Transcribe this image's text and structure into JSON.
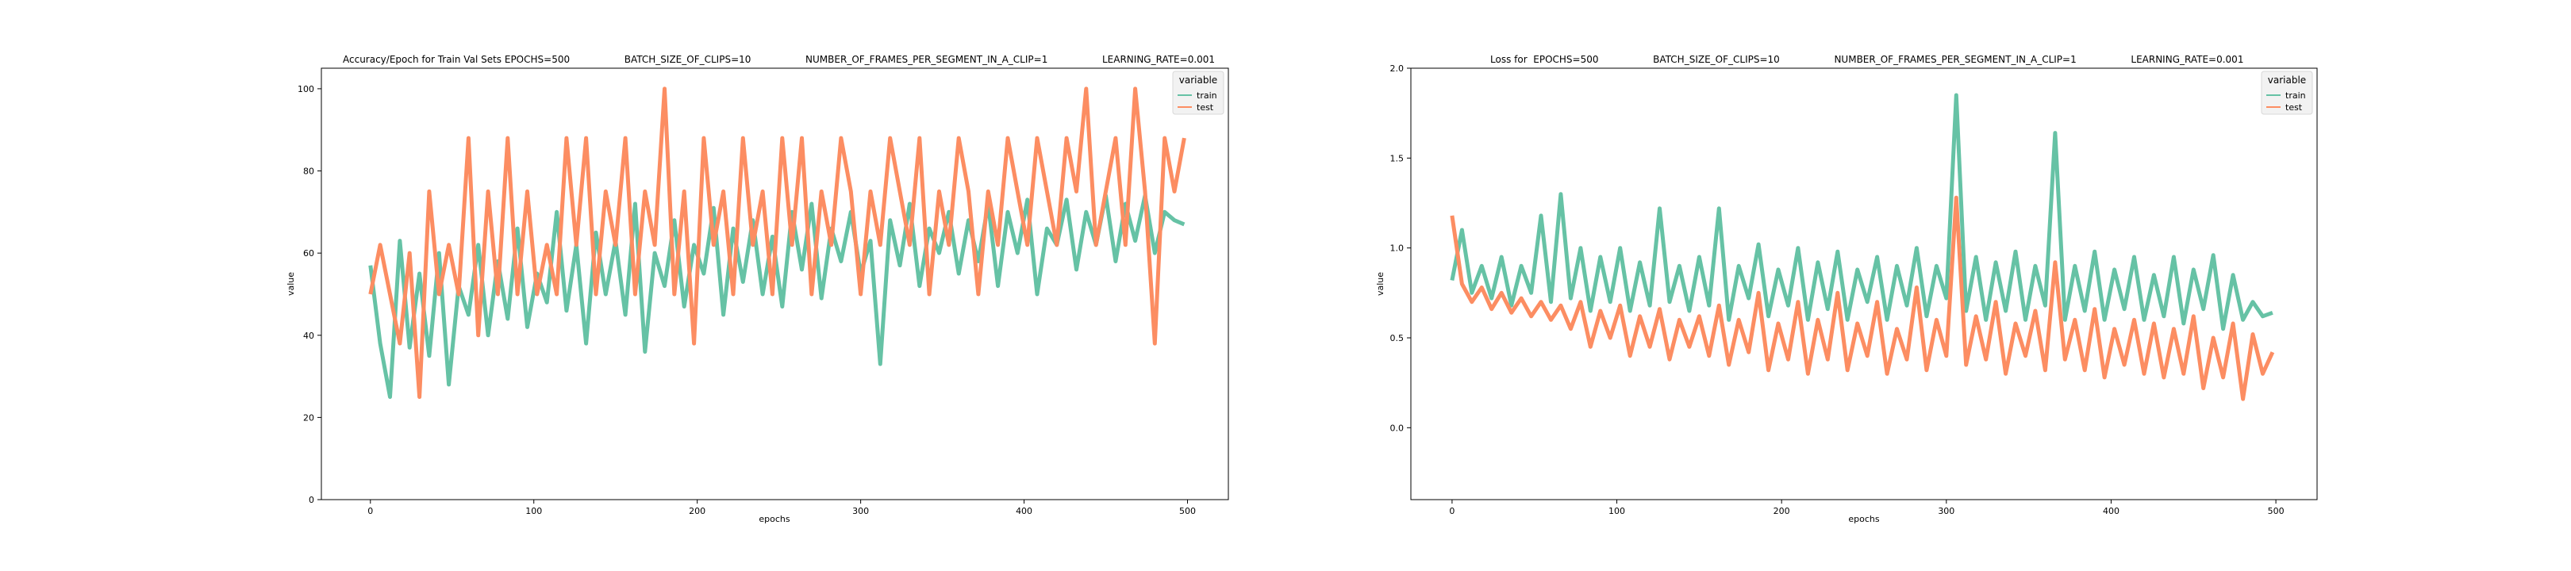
{
  "chart_data": [
    {
      "type": "line",
      "title": "Accuracy/Epoch for Train Val Sets EPOCHS=500                  BATCH_SIZE_OF_CLIPS=10                  NUMBER_OF_FRAMES_PER_SEGMENT_IN_A_CLIP=1                  LEARNING_RATE=0.001",
      "xlabel": "epochs",
      "ylabel": "value",
      "xlim": [
        -30,
        525
      ],
      "ylim": [
        0,
        105
      ],
      "xticks": [
        0,
        100,
        200,
        300,
        400,
        500
      ],
      "yticks": [
        0,
        20,
        40,
        60,
        80,
        100
      ],
      "grid": false,
      "legend": {
        "title": "variable",
        "position": "top-right"
      },
      "series": [
        {
          "name": "train",
          "color": "#66c2a5",
          "x": [
            0,
            6,
            12,
            18,
            24,
            30,
            36,
            42,
            48,
            54,
            60,
            66,
            72,
            78,
            84,
            90,
            96,
            102,
            108,
            114,
            120,
            126,
            132,
            138,
            144,
            150,
            156,
            162,
            168,
            174,
            180,
            186,
            192,
            198,
            204,
            210,
            216,
            222,
            228,
            234,
            240,
            246,
            252,
            258,
            264,
            270,
            276,
            282,
            288,
            294,
            300,
            306,
            312,
            318,
            324,
            330,
            336,
            342,
            348,
            354,
            360,
            366,
            372,
            378,
            384,
            390,
            396,
            402,
            408,
            414,
            420,
            426,
            432,
            438,
            444,
            450,
            456,
            462,
            468,
            474,
            480,
            486,
            492,
            498
          ],
          "values": [
            57,
            38,
            25,
            63,
            37,
            55,
            35,
            60,
            28,
            52,
            45,
            62,
            40,
            58,
            44,
            66,
            42,
            55,
            48,
            70,
            46,
            62,
            38,
            65,
            50,
            63,
            45,
            72,
            36,
            60,
            52,
            68,
            47,
            62,
            55,
            71,
            45,
            66,
            53,
            68,
            50,
            64,
            47,
            70,
            56,
            72,
            49,
            66,
            58,
            70,
            55,
            63,
            33,
            68,
            57,
            72,
            52,
            66,
            60,
            70,
            55,
            68,
            58,
            72,
            52,
            70,
            60,
            73,
            50,
            66,
            62,
            73,
            56,
            70,
            62,
            74,
            58,
            72,
            63,
            74,
            60,
            70,
            68,
            67
          ]
        },
        {
          "name": "test",
          "color": "#fc8d62",
          "x": [
            0,
            6,
            12,
            18,
            24,
            30,
            36,
            42,
            48,
            54,
            60,
            66,
            72,
            78,
            84,
            90,
            96,
            102,
            108,
            114,
            120,
            126,
            132,
            138,
            144,
            150,
            156,
            162,
            168,
            174,
            180,
            186,
            192,
            198,
            204,
            210,
            216,
            222,
            228,
            234,
            240,
            246,
            252,
            258,
            264,
            270,
            276,
            282,
            288,
            294,
            300,
            306,
            312,
            318,
            324,
            330,
            336,
            342,
            348,
            354,
            360,
            366,
            372,
            378,
            384,
            390,
            396,
            402,
            408,
            414,
            420,
            426,
            432,
            438,
            444,
            450,
            456,
            462,
            468,
            474,
            480,
            486,
            492,
            498
          ],
          "values": [
            50,
            62,
            50,
            38,
            60,
            25,
            75,
            50,
            62,
            50,
            88,
            40,
            75,
            50,
            88,
            50,
            75,
            50,
            62,
            50,
            88,
            62,
            88,
            50,
            75,
            62,
            88,
            50,
            75,
            62,
            100,
            50,
            75,
            38,
            88,
            62,
            75,
            50,
            88,
            62,
            75,
            50,
            88,
            62,
            88,
            50,
            75,
            62,
            88,
            75,
            50,
            75,
            62,
            88,
            75,
            62,
            88,
            50,
            75,
            62,
            88,
            75,
            50,
            75,
            62,
            88,
            75,
            62,
            88,
            75,
            62,
            88,
            75,
            100,
            62,
            75,
            88,
            62,
            100,
            75,
            38,
            88,
            75,
            88
          ]
        }
      ]
    },
    {
      "type": "line",
      "title": "Loss for  EPOCHS=500                  BATCH_SIZE_OF_CLIPS=10                  NUMBER_OF_FRAMES_PER_SEGMENT_IN_A_CLIP=1                  LEARNING_RATE=0.001",
      "xlabel": "epochs",
      "ylabel": "value",
      "xlim": [
        -25,
        525
      ],
      "ylim": [
        -0.4,
        2.0
      ],
      "xticks": [
        0,
        100,
        200,
        300,
        400,
        500
      ],
      "yticks": [
        0.0,
        0.5,
        1.0,
        1.5,
        2.0
      ],
      "grid": false,
      "legend": {
        "title": "variable",
        "position": "top-right"
      },
      "series": [
        {
          "name": "train",
          "color": "#66c2a5",
          "x": [
            0,
            6,
            12,
            18,
            24,
            30,
            36,
            42,
            48,
            54,
            60,
            66,
            72,
            78,
            84,
            90,
            96,
            102,
            108,
            114,
            120,
            126,
            132,
            138,
            144,
            150,
            156,
            162,
            168,
            174,
            180,
            186,
            192,
            198,
            204,
            210,
            216,
            222,
            228,
            234,
            240,
            246,
            252,
            258,
            264,
            270,
            276,
            282,
            288,
            294,
            300,
            306,
            312,
            318,
            324,
            330,
            336,
            342,
            348,
            354,
            360,
            366,
            372,
            378,
            384,
            390,
            396,
            402,
            408,
            414,
            420,
            426,
            432,
            438,
            444,
            450,
            456,
            462,
            468,
            474,
            480,
            486,
            492,
            498
          ],
          "values": [
            0.82,
            1.1,
            0.75,
            0.9,
            0.72,
            0.95,
            0.68,
            0.9,
            0.75,
            1.18,
            0.7,
            1.3,
            0.72,
            1.0,
            0.65,
            0.95,
            0.7,
            1.0,
            0.65,
            0.92,
            0.68,
            1.22,
            0.7,
            0.9,
            0.65,
            0.95,
            0.68,
            1.22,
            0.6,
            0.9,
            0.72,
            1.02,
            0.62,
            0.88,
            0.68,
            1.0,
            0.6,
            0.92,
            0.66,
            0.98,
            0.6,
            0.88,
            0.7,
            0.95,
            0.6,
            0.9,
            0.68,
            1.0,
            0.62,
            0.9,
            0.72,
            1.85,
            0.65,
            0.95,
            0.6,
            0.92,
            0.65,
            0.98,
            0.6,
            0.9,
            0.68,
            1.64,
            0.6,
            0.9,
            0.65,
            0.98,
            0.6,
            0.88,
            0.66,
            0.95,
            0.6,
            0.85,
            0.62,
            0.95,
            0.58,
            0.88,
            0.66,
            0.96,
            0.55,
            0.85,
            0.6,
            0.7,
            0.62,
            0.64
          ]
        },
        {
          "name": "test",
          "color": "#fc8d62",
          "x": [
            0,
            6,
            12,
            18,
            24,
            30,
            36,
            42,
            48,
            54,
            60,
            66,
            72,
            78,
            84,
            90,
            96,
            102,
            108,
            114,
            120,
            126,
            132,
            138,
            144,
            150,
            156,
            162,
            168,
            174,
            180,
            186,
            192,
            198,
            204,
            210,
            216,
            222,
            228,
            234,
            240,
            246,
            252,
            258,
            264,
            270,
            276,
            282,
            288,
            294,
            300,
            306,
            312,
            318,
            324,
            330,
            336,
            342,
            348,
            354,
            360,
            366,
            372,
            378,
            384,
            390,
            396,
            402,
            408,
            414,
            420,
            426,
            432,
            438,
            444,
            450,
            456,
            462,
            468,
            474,
            480,
            486,
            492,
            498
          ],
          "values": [
            1.18,
            0.8,
            0.7,
            0.78,
            0.66,
            0.75,
            0.64,
            0.72,
            0.62,
            0.7,
            0.6,
            0.68,
            0.55,
            0.7,
            0.45,
            0.65,
            0.5,
            0.68,
            0.4,
            0.62,
            0.45,
            0.66,
            0.38,
            0.6,
            0.45,
            0.62,
            0.4,
            0.68,
            0.35,
            0.6,
            0.42,
            0.75,
            0.32,
            0.58,
            0.38,
            0.7,
            0.3,
            0.6,
            0.38,
            0.75,
            0.32,
            0.58,
            0.4,
            0.7,
            0.3,
            0.55,
            0.38,
            0.78,
            0.32,
            0.6,
            0.4,
            1.28,
            0.35,
            0.62,
            0.38,
            0.7,
            0.3,
            0.58,
            0.4,
            0.65,
            0.32,
            0.92,
            0.38,
            0.6,
            0.32,
            0.66,
            0.28,
            0.55,
            0.35,
            0.6,
            0.3,
            0.58,
            0.28,
            0.55,
            0.3,
            0.62,
            0.22,
            0.5,
            0.28,
            0.58,
            0.16,
            0.52,
            0.3,
            0.42
          ]
        }
      ]
    }
  ]
}
